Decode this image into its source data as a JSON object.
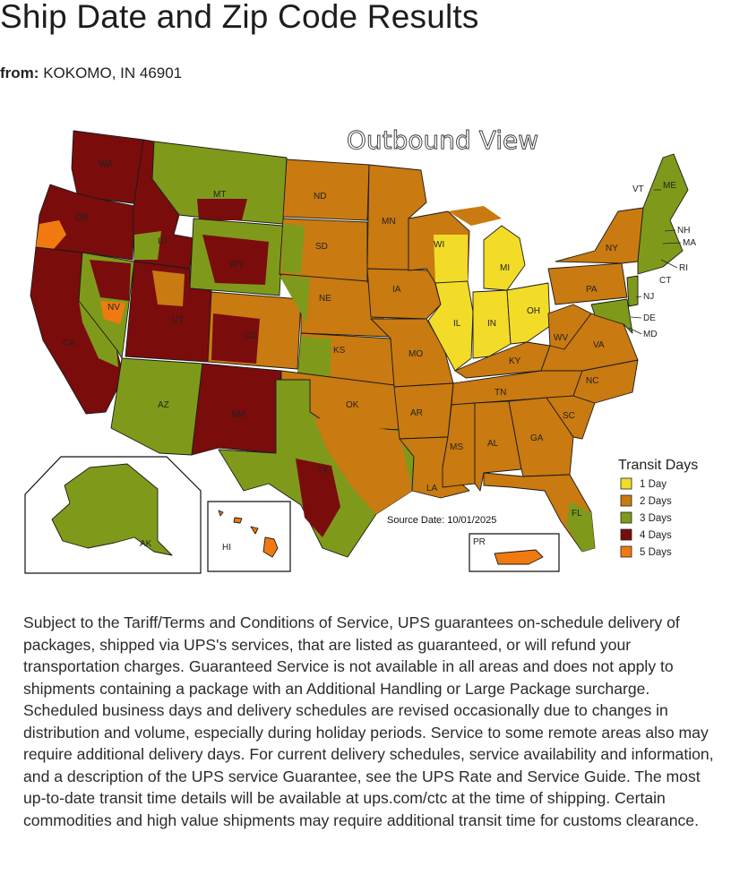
{
  "page": {
    "title": "Ship Date and Zip Code Results",
    "origin_label": "from:",
    "origin_value": "KOKOMO, IN 46901"
  },
  "map": {
    "title": "Outbound View",
    "source_date": "Source Date: 10/01/2025",
    "legend": {
      "title": "Transit Days",
      "items": [
        {
          "label": "1 Day",
          "color": "#f2dc28"
        },
        {
          "label": "2 Days",
          "color": "#c97a10"
        },
        {
          "label": "3 Days",
          "color": "#7f9a1a"
        },
        {
          "label": "4 Days",
          "color": "#7a0c0c"
        },
        {
          "label": "5 Days",
          "color": "#f07a10"
        }
      ]
    },
    "state_labels": {
      "WA": "WA",
      "OR": "OR",
      "CA": "CA",
      "ID": "ID",
      "NV": "NV",
      "MT": "MT",
      "WY": "WY",
      "UT": "UT",
      "AZ": "AZ",
      "CO": "CO",
      "NM": "NM",
      "ND": "ND",
      "SD": "SD",
      "NE": "NE",
      "KS": "KS",
      "OK": "OK",
      "TX": "TX",
      "MN": "MN",
      "IA": "IA",
      "MO": "MO",
      "AR": "AR",
      "LA": "LA",
      "WI": "WI",
      "IL": "IL",
      "MI": "MI",
      "IN": "IN",
      "OH": "OH",
      "KY": "KY",
      "TN": "TN",
      "MS": "MS",
      "AL": "AL",
      "GA": "GA",
      "FL": "FL",
      "SC": "SC",
      "NC": "NC",
      "VA": "VA",
      "WV": "WV",
      "PA": "PA",
      "NY": "NY",
      "VT": "VT",
      "ME": "ME",
      "NH": "NH",
      "MA": "MA",
      "RI": "RI",
      "CT": "CT",
      "NJ": "NJ",
      "DE": "DE",
      "MD": "MD",
      "AK": "AK",
      "HI": "HI",
      "PR": "PR"
    }
  },
  "disclaimer": "Subject to the Tariff/Terms and Conditions of Service, UPS guarantees on-schedule delivery of packages, shipped via UPS's services, that are listed as guaranteed, or will refund your transportation charges. Guaranteed Service is not available in all areas and does not apply to shipments containing a package with an Additional Handling or Large Package surcharge. Scheduled business days and delivery schedules are revised occasionally due to changes in distribution and volume, especially during holiday periods. Service to some remote areas also may require additional delivery days. For current delivery schedules, service availability and information, and a description of the UPS service Guarantee, see the UPS Rate and Service Guide. The most up-to-date transit time details will be available at ups.com/ctc at the time of shipping. Certain commodities and high value shipments may require additional transit time for customs clearance."
}
